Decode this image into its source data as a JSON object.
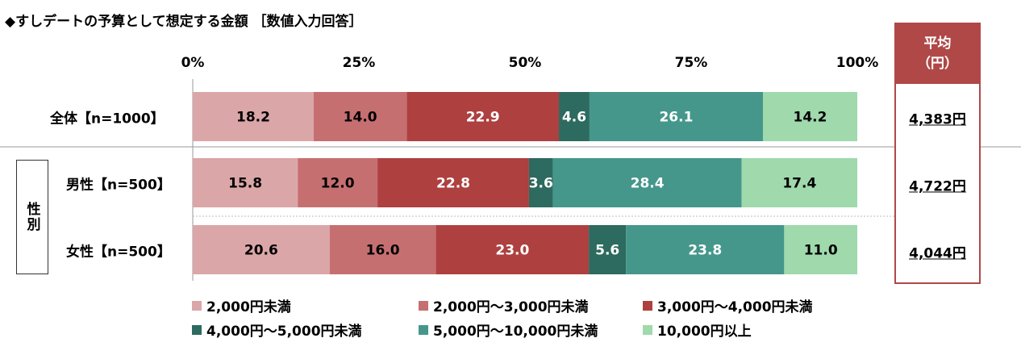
{
  "title": "◆すしデートの予算として想定する金額 ［数値入力回答］",
  "colors": [
    "#dba6a8",
    "#c66f71",
    "#ae4040",
    "#2d6a5f",
    "#45978b",
    "#9fd9ac"
  ],
  "average_header": {
    "line1": "平均",
    "line2": "（円）"
  },
  "group_label": "性別",
  "chart_data": {
    "type": "stacked-bar-100",
    "axis_ticks": [
      "0%",
      "25%",
      "50%",
      "75%",
      "100%"
    ],
    "xlim": [
      0,
      100
    ],
    "categories": [
      "全体【n=1000】",
      "男性【n=500】",
      "女性【n=500】"
    ],
    "series": [
      {
        "name": "2,000円未満",
        "values": [
          18.2,
          15.8,
          20.6
        ]
      },
      {
        "name": "2,000円～3,000円未満",
        "values": [
          14.0,
          12.0,
          16.0
        ]
      },
      {
        "name": "3,000円～4,000円未満",
        "values": [
          22.9,
          22.8,
          23.0
        ]
      },
      {
        "name": "4,000円～5,000円未満",
        "values": [
          4.6,
          3.6,
          5.6
        ]
      },
      {
        "name": "5,000円～10,000円未満",
        "values": [
          26.1,
          28.4,
          23.8
        ]
      },
      {
        "name": "10,000円以上",
        "values": [
          14.2,
          17.4,
          11.0
        ]
      }
    ],
    "averages": [
      "4,383円",
      "4,722円",
      "4,044円"
    ],
    "legend_position": "bottom"
  }
}
